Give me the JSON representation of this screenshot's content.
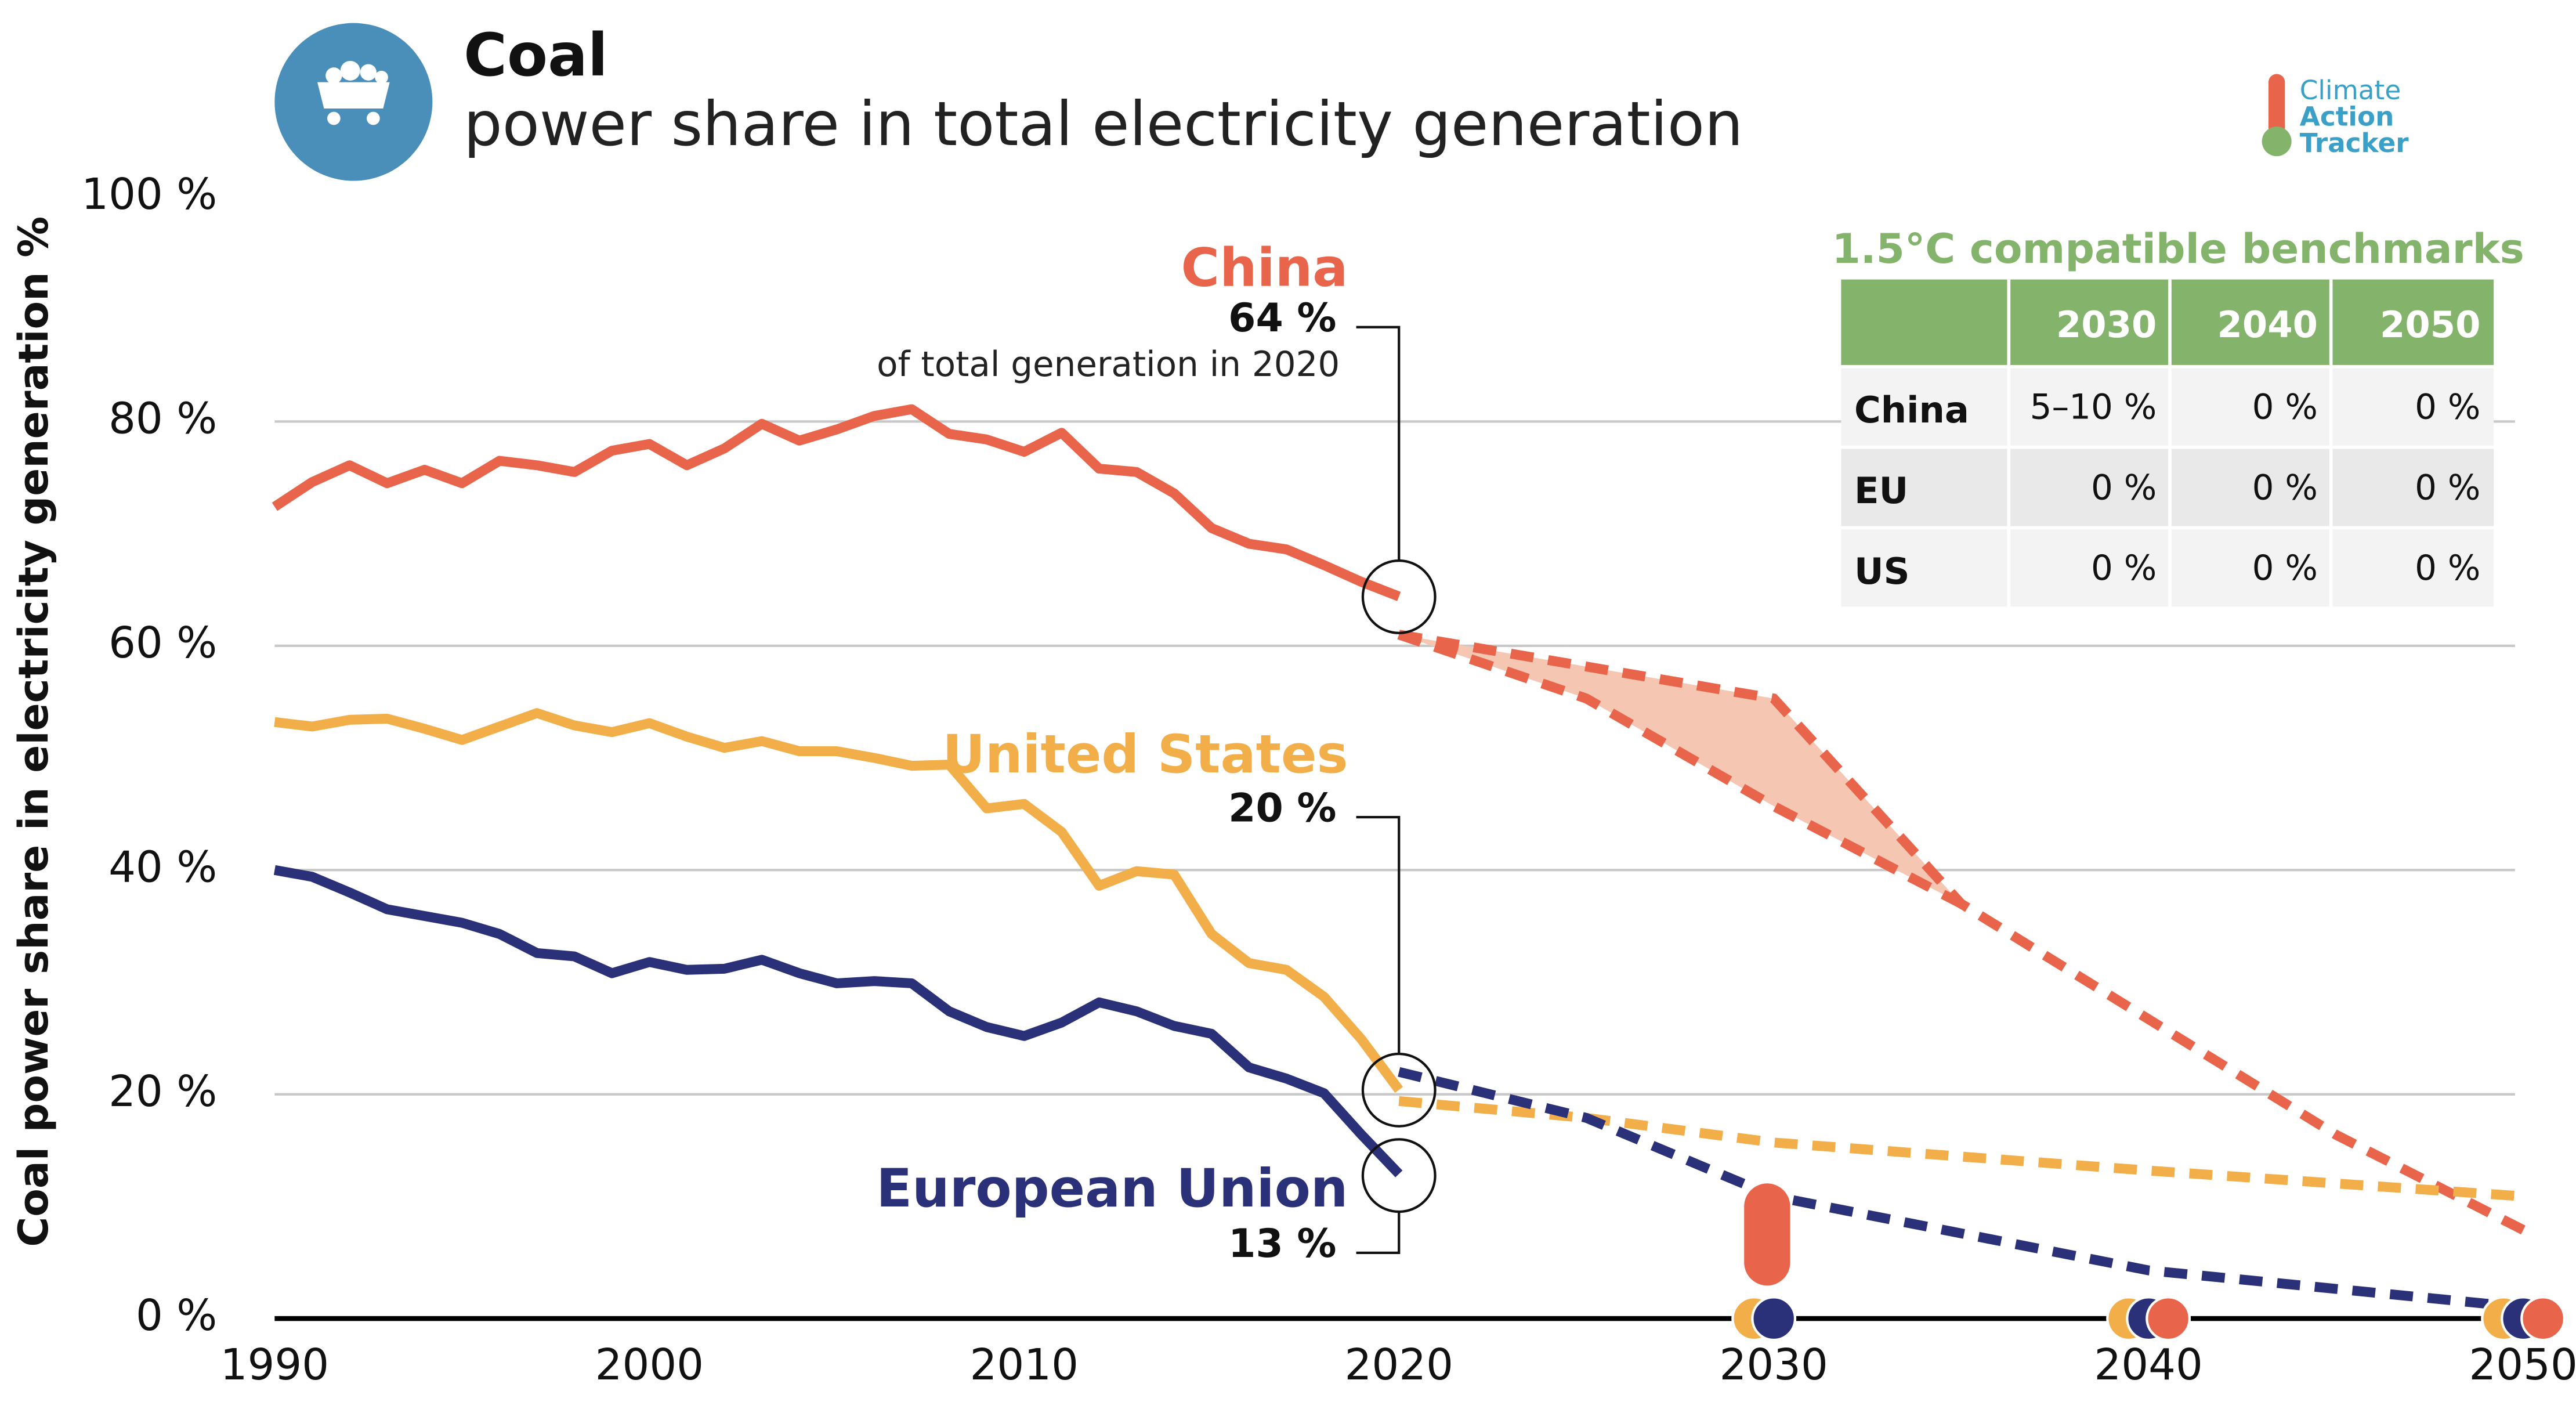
{
  "chart_data": {
    "type": "line",
    "title": "Coal",
    "subtitle": "power share in total electricity generation",
    "y_label": "Coal power share in electricity generation %",
    "logo": [
      "Climate",
      "Action",
      "Tracker"
    ],
    "xlim": [
      1990,
      2050
    ],
    "ylim": [
      0,
      100
    ],
    "xticks": [
      1990,
      2000,
      2010,
      2020,
      2030,
      2040,
      2050
    ],
    "yticks": [
      {
        "value": 0,
        "label": "0 %"
      },
      {
        "value": 20,
        "label": "20 %"
      },
      {
        "value": 40,
        "label": "40 %"
      },
      {
        "value": 60,
        "label": "60 %"
      },
      {
        "value": 80,
        "label": "80 %"
      },
      {
        "value": 100,
        "label": "100 %"
      }
    ],
    "grid": true,
    "x": [
      1990,
      1991,
      1992,
      1993,
      1994,
      1995,
      1996,
      1997,
      1998,
      1999,
      2000,
      2001,
      2002,
      2003,
      2004,
      2005,
      2006,
      2007,
      2008,
      2009,
      2010,
      2011,
      2012,
      2013,
      2014,
      2015,
      2016,
      2017,
      2018,
      2019,
      2020
    ],
    "benchmark_x": [
      2030,
      2040,
      2050
    ],
    "annotation": "of total generation in 2020",
    "series": [
      {
        "name": "China",
        "color": "#e8654b",
        "values": [
          72.4,
          74.6,
          76.1,
          74.5,
          75.7,
          74.5,
          76.5,
          76.1,
          75.5,
          77.4,
          78.0,
          76.1,
          77.6,
          79.8,
          78.3,
          79.3,
          80.5,
          81.1,
          78.9,
          78.4,
          77.3,
          79.0,
          75.8,
          75.5,
          73.6,
          70.5,
          69.1,
          68.6,
          67.2,
          65.7,
          64.4
        ],
        "end_label": {
          "value": 64,
          "label": "64 %"
        },
        "projection_x": [
          2020,
          2030,
          2035,
          2040,
          2045,
          2050
        ],
        "projection_values": [
          61.0,
          55.3,
          37.0,
          26.7,
          16.4,
          7.9
        ],
        "projection_low_x": [
          2020,
          2025,
          2030,
          2035
        ],
        "projection_low_values": [
          61.0,
          55.3,
          45.7,
          37.0
        ],
        "range_color": "#f5c6b2",
        "benchmark_low": [
          5,
          0,
          0
        ],
        "benchmark_high": [
          10,
          0,
          0
        ]
      },
      {
        "name": "United States",
        "color": "#f2ae48",
        "values": [
          53.2,
          52.8,
          53.4,
          53.5,
          52.6,
          51.6,
          52.8,
          54.0,
          52.9,
          52.3,
          53.1,
          51.9,
          50.9,
          51.5,
          50.6,
          50.6,
          50.0,
          49.3,
          49.4,
          45.5,
          45.9,
          43.4,
          38.6,
          39.9,
          39.6,
          34.3,
          31.7,
          31.1,
          28.7,
          24.9,
          20.4
        ],
        "end_label": {
          "value": 20,
          "label": "20 %"
        },
        "projection_x": [
          2020,
          2025,
          2030,
          2040,
          2050
        ],
        "projection_values": [
          19.4,
          17.9,
          15.7,
          13.2,
          10.9
        ],
        "benchmark_low": [
          0,
          0,
          0
        ],
        "benchmark_high": [
          0,
          0,
          0
        ]
      },
      {
        "name": "European Union",
        "color": "#2b3178",
        "values": [
          40.0,
          39.4,
          38.0,
          36.5,
          35.9,
          35.3,
          34.3,
          32.6,
          32.3,
          30.8,
          31.8,
          31.1,
          31.2,
          32.0,
          30.8,
          29.9,
          30.1,
          29.9,
          27.4,
          26.0,
          25.2,
          26.4,
          28.2,
          27.4,
          26.1,
          25.4,
          22.4,
          21.4,
          20.1,
          16.4,
          12.9
        ],
        "end_label": {
          "value": 13,
          "label": "13 %"
        },
        "projection_x": [
          2020,
          2025,
          2030,
          2040,
          2050
        ],
        "projection_values": [
          22.0,
          17.9,
          10.9,
          4.3,
          1.0
        ],
        "benchmark_low": [
          0,
          0,
          0
        ],
        "benchmark_high": [
          0,
          0,
          0
        ]
      }
    ],
    "benchmark_table": {
      "title": "1.5°C compatible benchmarks",
      "header_color": "#84b46b",
      "columns": [
        "2030",
        "2040",
        "2050"
      ],
      "rows": [
        [
          "China",
          "5–10 %",
          "0 %",
          "0 %"
        ],
        [
          "EU",
          "0 %",
          "0 %",
          "0 %"
        ],
        [
          "US",
          "0 %",
          "0 %",
          "0 %"
        ]
      ]
    }
  }
}
